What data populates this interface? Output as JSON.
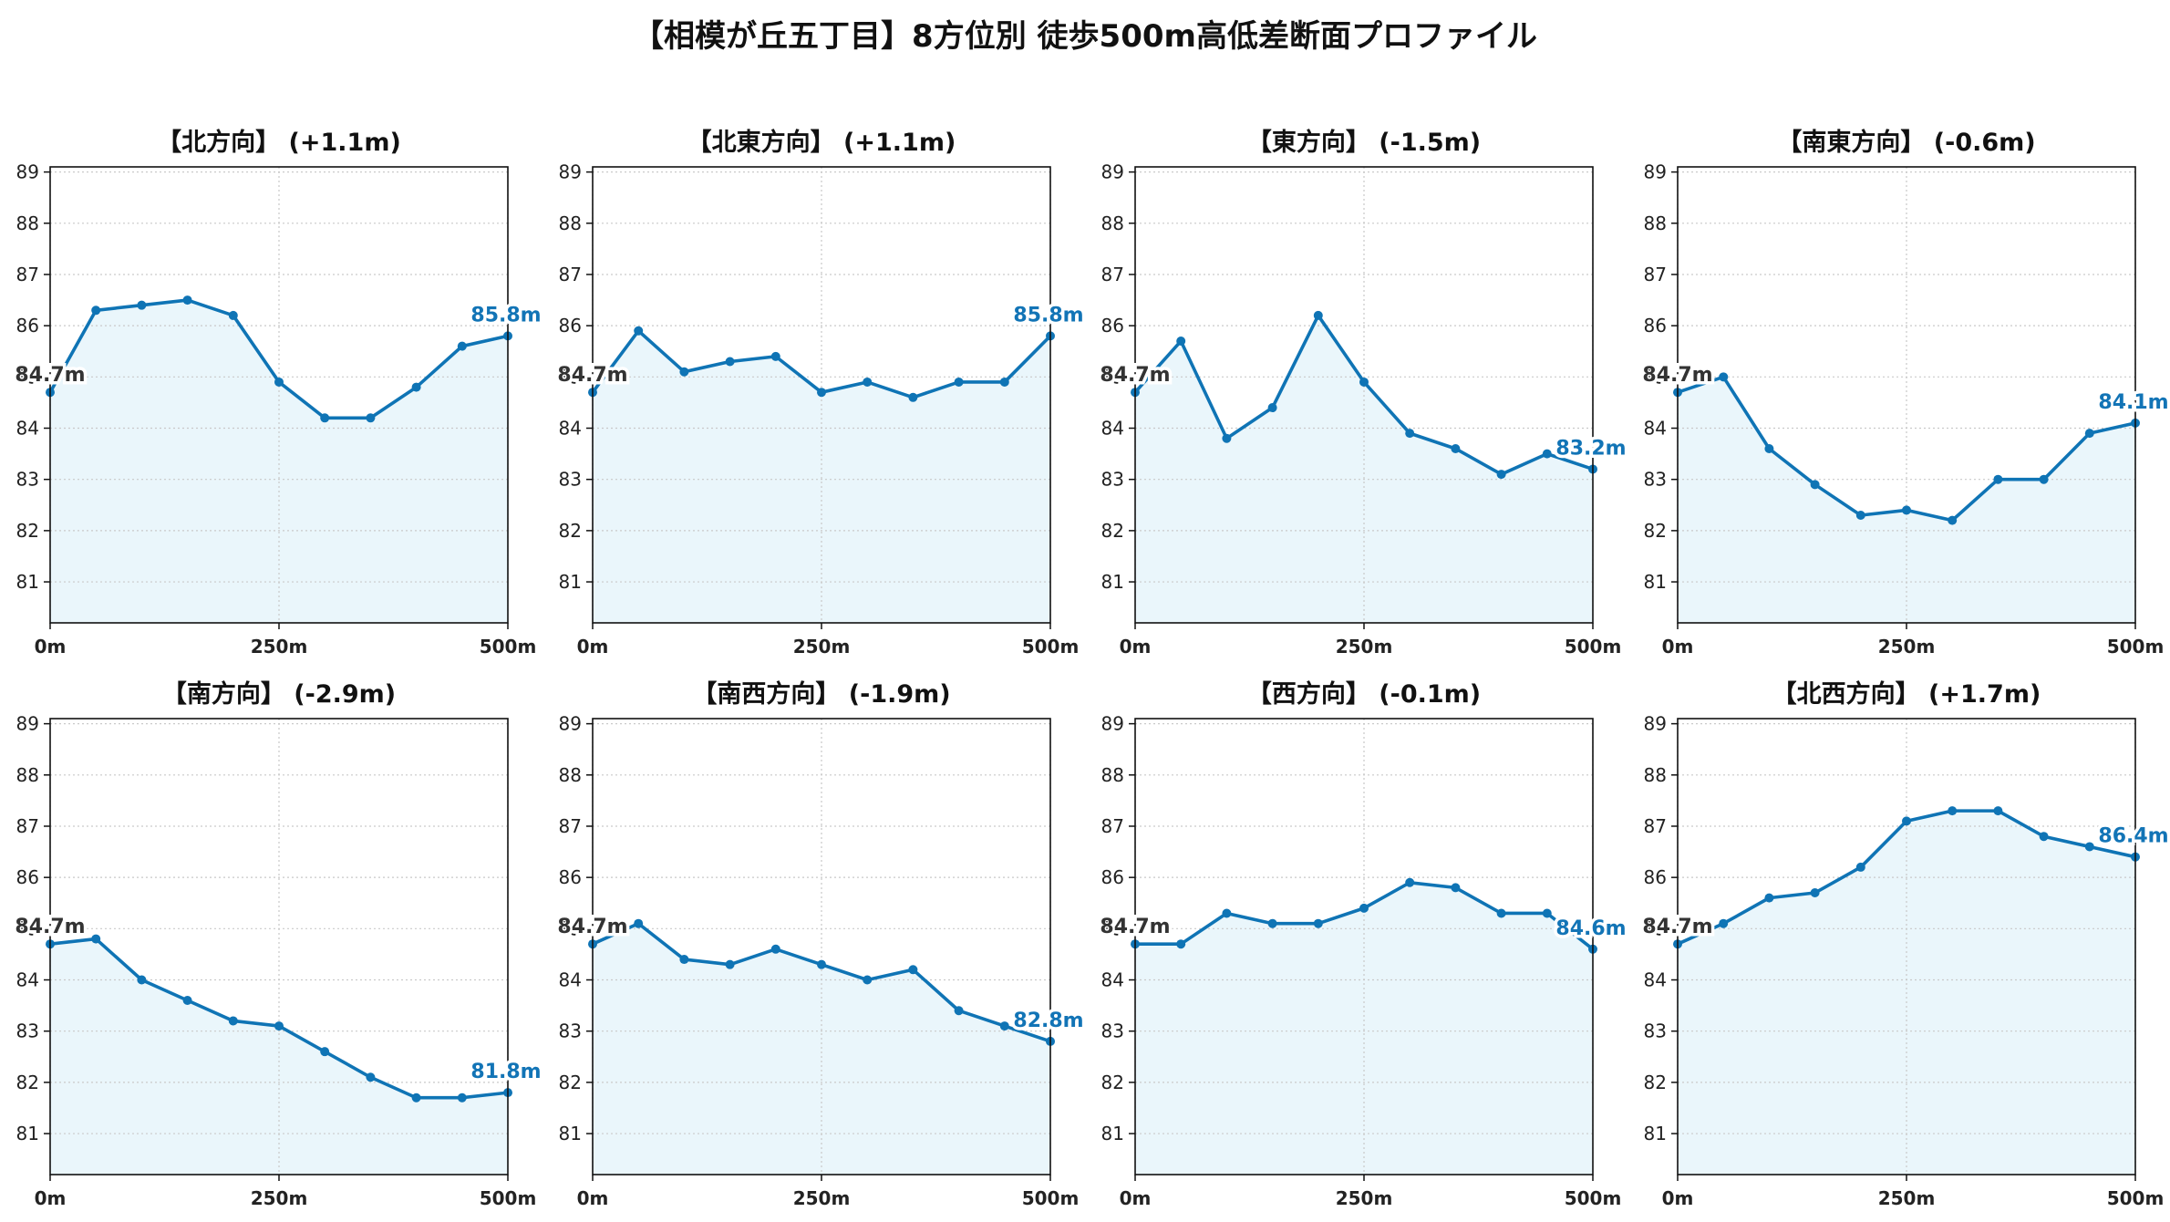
{
  "page": {
    "title": "【相模が丘五丁目】8方位別 徒歩500m高低差断面プロファイル"
  },
  "chart_data": [
    {
      "type": "line",
      "title": "【北方向】 (+1.1m)",
      "x": [
        0,
        50,
        100,
        150,
        200,
        250,
        300,
        350,
        400,
        450,
        500
      ],
      "y": [
        84.7,
        86.3,
        86.4,
        86.5,
        86.2,
        84.9,
        84.2,
        84.2,
        84.8,
        85.6,
        85.8
      ],
      "start_label": "84.7m",
      "end_label": "85.8m",
      "xlim": [
        0,
        500
      ],
      "ylim": [
        80.2,
        89.1
      ],
      "yticks": [
        81,
        82,
        83,
        84,
        85,
        86,
        87,
        88,
        89
      ],
      "xticks": [
        0,
        250,
        500
      ],
      "xtick_labels": [
        "0m",
        "250m",
        "500m"
      ],
      "grid": true
    },
    {
      "type": "line",
      "title": "【北東方向】 (+1.1m)",
      "x": [
        0,
        50,
        100,
        150,
        200,
        250,
        300,
        350,
        400,
        450,
        500
      ],
      "y": [
        84.7,
        85.9,
        85.1,
        85.3,
        85.4,
        84.7,
        84.9,
        84.6,
        84.9,
        84.9,
        85.8
      ],
      "start_label": "84.7m",
      "end_label": "85.8m",
      "xlim": [
        0,
        500
      ],
      "ylim": [
        80.2,
        89.1
      ],
      "yticks": [
        81,
        82,
        83,
        84,
        85,
        86,
        87,
        88,
        89
      ],
      "xticks": [
        0,
        250,
        500
      ],
      "xtick_labels": [
        "0m",
        "250m",
        "500m"
      ],
      "grid": true
    },
    {
      "type": "line",
      "title": "【東方向】 (-1.5m)",
      "x": [
        0,
        50,
        100,
        150,
        200,
        250,
        300,
        350,
        400,
        450,
        500
      ],
      "y": [
        84.7,
        85.7,
        83.8,
        84.4,
        86.2,
        84.9,
        83.9,
        83.6,
        83.1,
        83.5,
        83.2
      ],
      "start_label": "84.7m",
      "end_label": "83.2m",
      "xlim": [
        0,
        500
      ],
      "ylim": [
        80.2,
        89.1
      ],
      "yticks": [
        81,
        82,
        83,
        84,
        85,
        86,
        87,
        88,
        89
      ],
      "xticks": [
        0,
        250,
        500
      ],
      "xtick_labels": [
        "0m",
        "250m",
        "500m"
      ],
      "grid": true
    },
    {
      "type": "line",
      "title": "【南東方向】 (-0.6m)",
      "x": [
        0,
        50,
        100,
        150,
        200,
        250,
        300,
        350,
        400,
        450,
        500
      ],
      "y": [
        84.7,
        85.0,
        83.6,
        82.9,
        82.3,
        82.4,
        82.2,
        83.0,
        83.0,
        83.9,
        84.1
      ],
      "start_label": "84.7m",
      "end_label": "84.1m",
      "xlim": [
        0,
        500
      ],
      "ylim": [
        80.2,
        89.1
      ],
      "yticks": [
        81,
        82,
        83,
        84,
        85,
        86,
        87,
        88,
        89
      ],
      "xticks": [
        0,
        250,
        500
      ],
      "xtick_labels": [
        "0m",
        "250m",
        "500m"
      ],
      "grid": true
    },
    {
      "type": "line",
      "title": "【南方向】 (-2.9m)",
      "x": [
        0,
        50,
        100,
        150,
        200,
        250,
        300,
        350,
        400,
        450,
        500
      ],
      "y": [
        84.7,
        84.8,
        84.0,
        83.6,
        83.2,
        83.1,
        82.6,
        82.1,
        81.7,
        81.7,
        81.8
      ],
      "start_label": "84.7m",
      "end_label": "81.8m",
      "xlim": [
        0,
        500
      ],
      "ylim": [
        80.2,
        89.1
      ],
      "yticks": [
        81,
        82,
        83,
        84,
        85,
        86,
        87,
        88,
        89
      ],
      "xticks": [
        0,
        250,
        500
      ],
      "xtick_labels": [
        "0m",
        "250m",
        "500m"
      ],
      "grid": true
    },
    {
      "type": "line",
      "title": "【南西方向】 (-1.9m)",
      "x": [
        0,
        50,
        100,
        150,
        200,
        250,
        300,
        350,
        400,
        450,
        500
      ],
      "y": [
        84.7,
        85.1,
        84.4,
        84.3,
        84.6,
        84.3,
        84.0,
        84.2,
        83.4,
        83.1,
        82.8
      ],
      "start_label": "84.7m",
      "end_label": "82.8m",
      "xlim": [
        0,
        500
      ],
      "ylim": [
        80.2,
        89.1
      ],
      "yticks": [
        81,
        82,
        83,
        84,
        85,
        86,
        87,
        88,
        89
      ],
      "xticks": [
        0,
        250,
        500
      ],
      "xtick_labels": [
        "0m",
        "250m",
        "500m"
      ],
      "grid": true
    },
    {
      "type": "line",
      "title": "【西方向】 (-0.1m)",
      "x": [
        0,
        50,
        100,
        150,
        200,
        250,
        300,
        350,
        400,
        450,
        500
      ],
      "y": [
        84.7,
        84.7,
        85.3,
        85.1,
        85.1,
        85.4,
        85.9,
        85.8,
        85.3,
        85.3,
        84.6
      ],
      "start_label": "84.7m",
      "end_label": "84.6m",
      "xlim": [
        0,
        500
      ],
      "ylim": [
        80.2,
        89.1
      ],
      "yticks": [
        81,
        82,
        83,
        84,
        85,
        86,
        87,
        88,
        89
      ],
      "xticks": [
        0,
        250,
        500
      ],
      "xtick_labels": [
        "0m",
        "250m",
        "500m"
      ],
      "grid": true
    },
    {
      "type": "line",
      "title": "【北西方向】 (+1.7m)",
      "x": [
        0,
        50,
        100,
        150,
        200,
        250,
        300,
        350,
        400,
        450,
        500
      ],
      "y": [
        84.7,
        85.1,
        85.6,
        85.7,
        86.2,
        87.1,
        87.3,
        87.3,
        86.8,
        86.6,
        86.4
      ],
      "start_label": "84.7m",
      "end_label": "86.4m",
      "xlim": [
        0,
        500
      ],
      "ylim": [
        80.2,
        89.1
      ],
      "yticks": [
        81,
        82,
        83,
        84,
        85,
        86,
        87,
        88,
        89
      ],
      "xticks": [
        0,
        250,
        500
      ],
      "xtick_labels": [
        "0m",
        "250m",
        "500m"
      ],
      "grid": true
    }
  ],
  "colors": {
    "line": "#0f74b5",
    "fill": "#eaf6fb",
    "end_label": "#1274b6",
    "start_label": "#333333"
  }
}
